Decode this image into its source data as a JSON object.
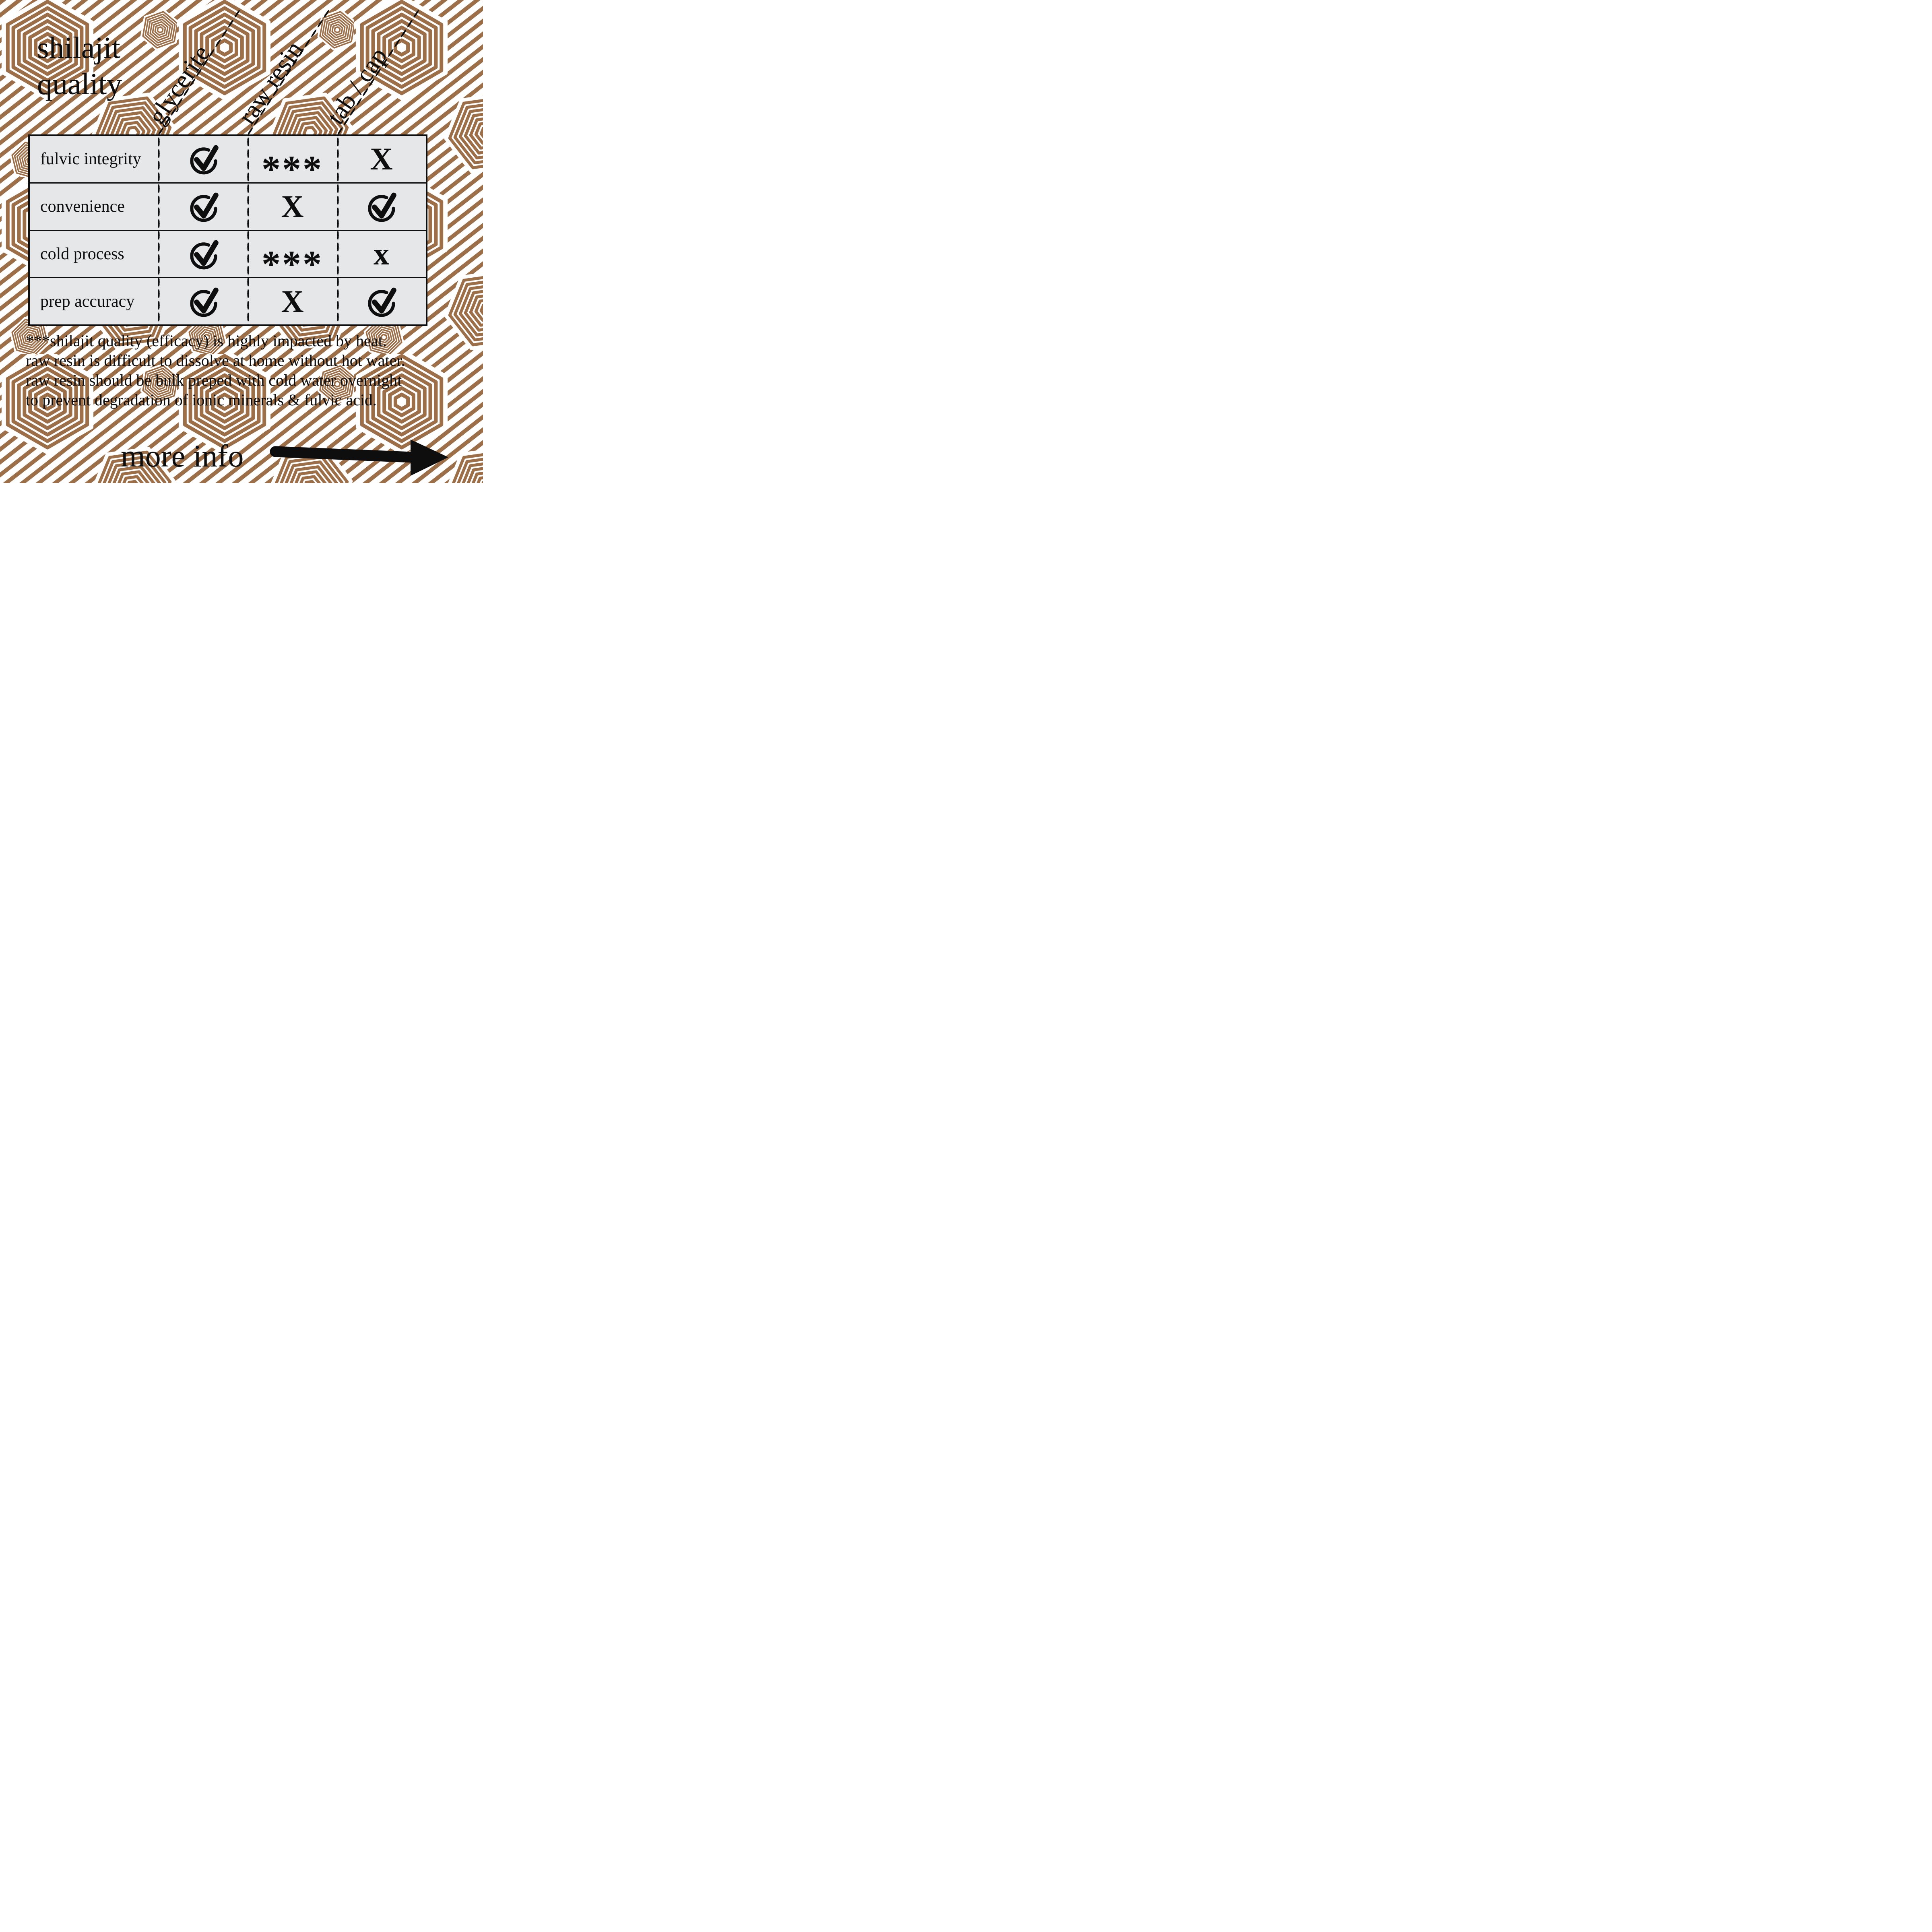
{
  "title": {
    "line1": "shilajit",
    "line2": "quality"
  },
  "table": {
    "columns": [
      "glycerite",
      "raw resin",
      "tab / cap"
    ],
    "rows": [
      {
        "label": "fulvic integrity",
        "cells": [
          "check",
          "stars",
          "X"
        ]
      },
      {
        "label": "convenience",
        "cells": [
          "check",
          "X",
          "check"
        ]
      },
      {
        "label": "cold process",
        "cells": [
          "check",
          "stars",
          "x"
        ]
      },
      {
        "label": "prep accuracy",
        "cells": [
          "check",
          "X",
          "check"
        ]
      }
    ],
    "symbols": {
      "stars": "***",
      "X": "X",
      "x": "x"
    }
  },
  "footnote": {
    "lines": [
      "***shilajit quality (efficacy) is highly impacted by heat.",
      "raw resin is difficult to dissolve at home without hot water.",
      "raw resin should be bulk preped with cold water overnight",
      "to prevent degradation of ionic minerals & fulvic acid."
    ]
  },
  "cta": {
    "label": "more info"
  },
  "colors": {
    "pattern_brown": "#9c6f49",
    "table_bg": "#e6e7e9",
    "ink": "#0e0e0e",
    "background": "#ffffff"
  },
  "chart_data": {
    "type": "table",
    "title": "shilajit quality",
    "columns": [
      "glycerite",
      "raw resin",
      "tab / cap"
    ],
    "rows": [
      "fulvic integrity",
      "convenience",
      "cold process",
      "prep accuracy"
    ],
    "values": [
      [
        "yes",
        "see-note",
        "no"
      ],
      [
        "yes",
        "no",
        "yes"
      ],
      [
        "yes",
        "see-note",
        "no"
      ],
      [
        "yes",
        "no",
        "yes"
      ]
    ],
    "legend": {
      "check": "yes / good",
      "X": "no / poor",
      "***": "see footnote"
    },
    "note": "***shilajit quality (efficacy) is highly impacted by heat. raw resin is difficult to dissolve at home without hot water. raw resin should be bulk preped with cold water overnight to prevent degradation of ionic minerals & fulvic acid."
  }
}
